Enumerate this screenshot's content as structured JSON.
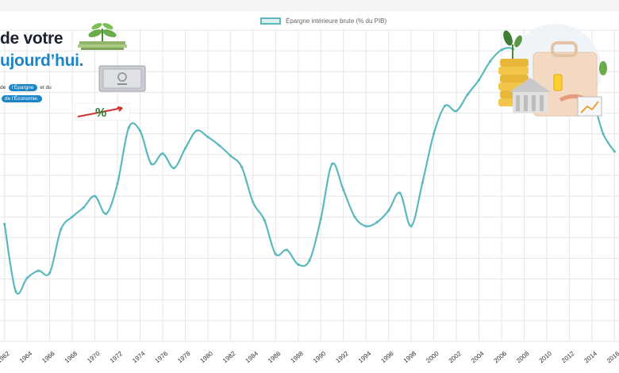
{
  "chart_data": {
    "type": "line",
    "legend_label": "Épargne intérieure brute (% du PIB)",
    "legend_position": "top-center",
    "x": [
      1962,
      1963,
      1964,
      1965,
      1966,
      1967,
      1968,
      1969,
      1970,
      1971,
      1972,
      1973,
      1974,
      1975,
      1976,
      1977,
      1978,
      1979,
      1980,
      1981,
      1982,
      1983,
      1984,
      1985,
      1986,
      1987,
      1988,
      1989,
      1990,
      1991,
      1992,
      1993,
      1994,
      1995,
      1996,
      1997,
      1998,
      1999,
      2000,
      2001,
      2002,
      2003,
      2004,
      2005,
      2006,
      2007,
      2008,
      2009,
      2010,
      2011,
      2012,
      2013,
      2014,
      2015,
      2016
    ],
    "series": [
      {
        "name": "Épargne intérieure brute (% du PIB)",
        "values": [
          19.3,
          12.8,
          14.1,
          14.8,
          14.6,
          18.8,
          20.0,
          20.9,
          22.0,
          20.3,
          23.2,
          28.6,
          28.3,
          25.1,
          26.1,
          24.7,
          26.6,
          28.3,
          27.7,
          26.9,
          25.9,
          24.8,
          21.4,
          19.7,
          16.4,
          16.8,
          15.4,
          15.8,
          19.8,
          25.1,
          22.6,
          20.0,
          19.1,
          19.5,
          20.6,
          22.3,
          19.1,
          23.3,
          28.0,
          30.7,
          30.2,
          31.8,
          33.2,
          35.0,
          36.1,
          36.2,
          35.0,
          34.8,
          33.8,
          34.1,
          33.5,
          32.8,
          31.5,
          28.0,
          26.3
        ]
      }
    ],
    "xticks": [
      1962,
      1964,
      1966,
      1968,
      1970,
      1972,
      1974,
      1976,
      1978,
      1980,
      1982,
      1984,
      1986,
      1988,
      1990,
      1992,
      1994,
      1996,
      1998,
      2000,
      2002,
      2004,
      2006,
      2008,
      2010,
      2012,
      2014,
      2016
    ],
    "xlim": [
      1961.6,
      2016.4
    ],
    "ylim": [
      8,
      38
    ],
    "grid": true,
    "colors": {
      "line": "#5bb9bd",
      "grid": "#e6e6e6",
      "fill": "#dbeff0"
    }
  },
  "overlay": {
    "title_line1": "de votre",
    "title_line2": "ujourd’hui.",
    "line1_prefix": "de",
    "line1_pill": "l’Épargne",
    "line1_suffix": "et du",
    "line2_pill": "de l’Économie.",
    "percent_symbol": "%",
    "accent_color": "#1a86c8"
  }
}
